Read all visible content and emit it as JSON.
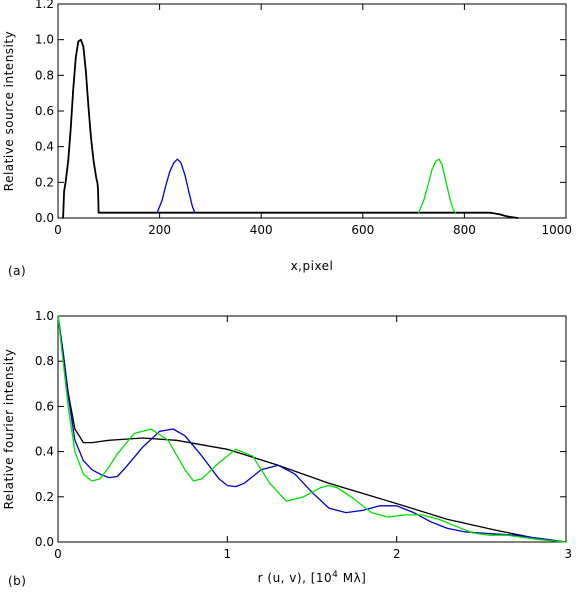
{
  "chart_data": [
    {
      "type": "line",
      "panel_label": "(a)",
      "xlabel": "x,pixel",
      "ylabel": "Relative source intensity",
      "xlim": [
        0,
        1000
      ],
      "ylim": [
        0,
        1.2
      ],
      "xticks": [
        0,
        200,
        400,
        600,
        800,
        1000
      ],
      "xtick_labels": [
        "0",
        "200",
        "400",
        "600",
        "800",
        "1000"
      ],
      "yticks": [
        0,
        0.2,
        0.4,
        0.6,
        0.8,
        1.0,
        1.2
      ],
      "ytick_labels": [
        "0.0",
        "0.2",
        "0.4",
        "0.6",
        "0.8",
        "1.0",
        "1.2"
      ],
      "grid": false,
      "series": [
        {
          "color": "#000000",
          "x": [
            10,
            12,
            15,
            20,
            25,
            30,
            35,
            40,
            45,
            50,
            55,
            60,
            65,
            70,
            75,
            78,
            79,
            80,
            81,
            82,
            84,
            100,
            200,
            300,
            400,
            500,
            600,
            700,
            800,
            850,
            860,
            870,
            880,
            890,
            900,
            905
          ],
          "y": [
            0,
            0.15,
            0.2,
            0.32,
            0.5,
            0.72,
            0.9,
            0.99,
            1.0,
            0.96,
            0.82,
            0.62,
            0.45,
            0.32,
            0.23,
            0.19,
            0.15,
            0.03,
            0.03,
            0.03,
            0.03,
            0.03,
            0.03,
            0.03,
            0.03,
            0.03,
            0.03,
            0.03,
            0.03,
            0.03,
            0.025,
            0.02,
            0.012,
            0.006,
            0.002,
            0
          ]
        },
        {
          "color": "#0000cc",
          "x": [
            195,
            198,
            205,
            212,
            220,
            228,
            235,
            242,
            250,
            258,
            265,
            268,
            270
          ],
          "y": [
            0.03,
            0.05,
            0.1,
            0.18,
            0.26,
            0.31,
            0.33,
            0.31,
            0.24,
            0.14,
            0.06,
            0.04,
            0.03
          ]
        },
        {
          "color": "#00e000",
          "x": [
            710,
            713,
            720,
            728,
            736,
            744,
            750,
            756,
            764,
            772,
            778,
            782
          ],
          "y": [
            0.03,
            0.05,
            0.1,
            0.18,
            0.27,
            0.32,
            0.33,
            0.3,
            0.2,
            0.1,
            0.05,
            0.03
          ]
        }
      ]
    },
    {
      "type": "line",
      "panel_label": "(b)",
      "xlabel": "r (u, v), [10",
      "xlabel_sup": "4",
      "xlabel_suffix": " Mλ]",
      "ylabel": "Relative fourier intensity",
      "xlim": [
        0,
        3
      ],
      "ylim": [
        0,
        1.0
      ],
      "xticks": [
        0,
        1,
        2,
        3
      ],
      "xtick_labels": [
        "0",
        "1",
        "2",
        "3"
      ],
      "yticks": [
        0,
        0.2,
        0.4,
        0.6,
        0.8,
        1.0
      ],
      "ytick_labels": [
        "0.0",
        "0.2",
        "0.4",
        "0.6",
        "0.8",
        "1.0"
      ],
      "grid": false,
      "series": [
        {
          "color": "#000000",
          "x": [
            0,
            0.03,
            0.06,
            0.1,
            0.15,
            0.2,
            0.3,
            0.5,
            0.7,
            1.0,
            1.3,
            1.6,
            2.0,
            2.3,
            2.6,
            2.8,
            3.0
          ],
          "y": [
            1.0,
            0.84,
            0.66,
            0.5,
            0.44,
            0.44,
            0.45,
            0.46,
            0.45,
            0.41,
            0.34,
            0.26,
            0.17,
            0.1,
            0.05,
            0.02,
            0
          ]
        },
        {
          "color": "#0000cc",
          "x": [
            0,
            0.03,
            0.06,
            0.1,
            0.15,
            0.2,
            0.25,
            0.3,
            0.35,
            0.4,
            0.5,
            0.6,
            0.68,
            0.75,
            0.85,
            0.95,
            1.0,
            1.05,
            1.1,
            1.2,
            1.3,
            1.4,
            1.5,
            1.6,
            1.7,
            1.8,
            1.9,
            2.0,
            2.1,
            2.2,
            2.3,
            2.4,
            2.5,
            2.6,
            2.7,
            2.8,
            2.9,
            3.0
          ],
          "y": [
            1.0,
            0.84,
            0.65,
            0.45,
            0.36,
            0.32,
            0.3,
            0.285,
            0.29,
            0.33,
            0.42,
            0.49,
            0.5,
            0.47,
            0.38,
            0.28,
            0.25,
            0.245,
            0.26,
            0.32,
            0.34,
            0.3,
            0.22,
            0.15,
            0.13,
            0.14,
            0.16,
            0.16,
            0.13,
            0.09,
            0.06,
            0.045,
            0.04,
            0.035,
            0.03,
            0.02,
            0.01,
            0
          ]
        },
        {
          "color": "#00e000",
          "x": [
            0,
            0.03,
            0.06,
            0.1,
            0.15,
            0.2,
            0.25,
            0.3,
            0.35,
            0.45,
            0.55,
            0.65,
            0.75,
            0.8,
            0.85,
            0.95,
            1.05,
            1.15,
            1.25,
            1.35,
            1.45,
            1.55,
            1.6,
            1.65,
            1.75,
            1.85,
            1.95,
            2.05,
            2.15,
            2.25,
            2.35,
            2.45,
            2.55,
            2.65,
            2.75,
            2.85,
            3.0
          ],
          "y": [
            1.0,
            0.8,
            0.6,
            0.4,
            0.3,
            0.27,
            0.28,
            0.33,
            0.39,
            0.48,
            0.5,
            0.45,
            0.32,
            0.27,
            0.28,
            0.35,
            0.41,
            0.38,
            0.26,
            0.18,
            0.2,
            0.24,
            0.25,
            0.24,
            0.19,
            0.13,
            0.11,
            0.12,
            0.12,
            0.1,
            0.07,
            0.04,
            0.03,
            0.03,
            0.02,
            0.01,
            0
          ]
        }
      ]
    }
  ]
}
